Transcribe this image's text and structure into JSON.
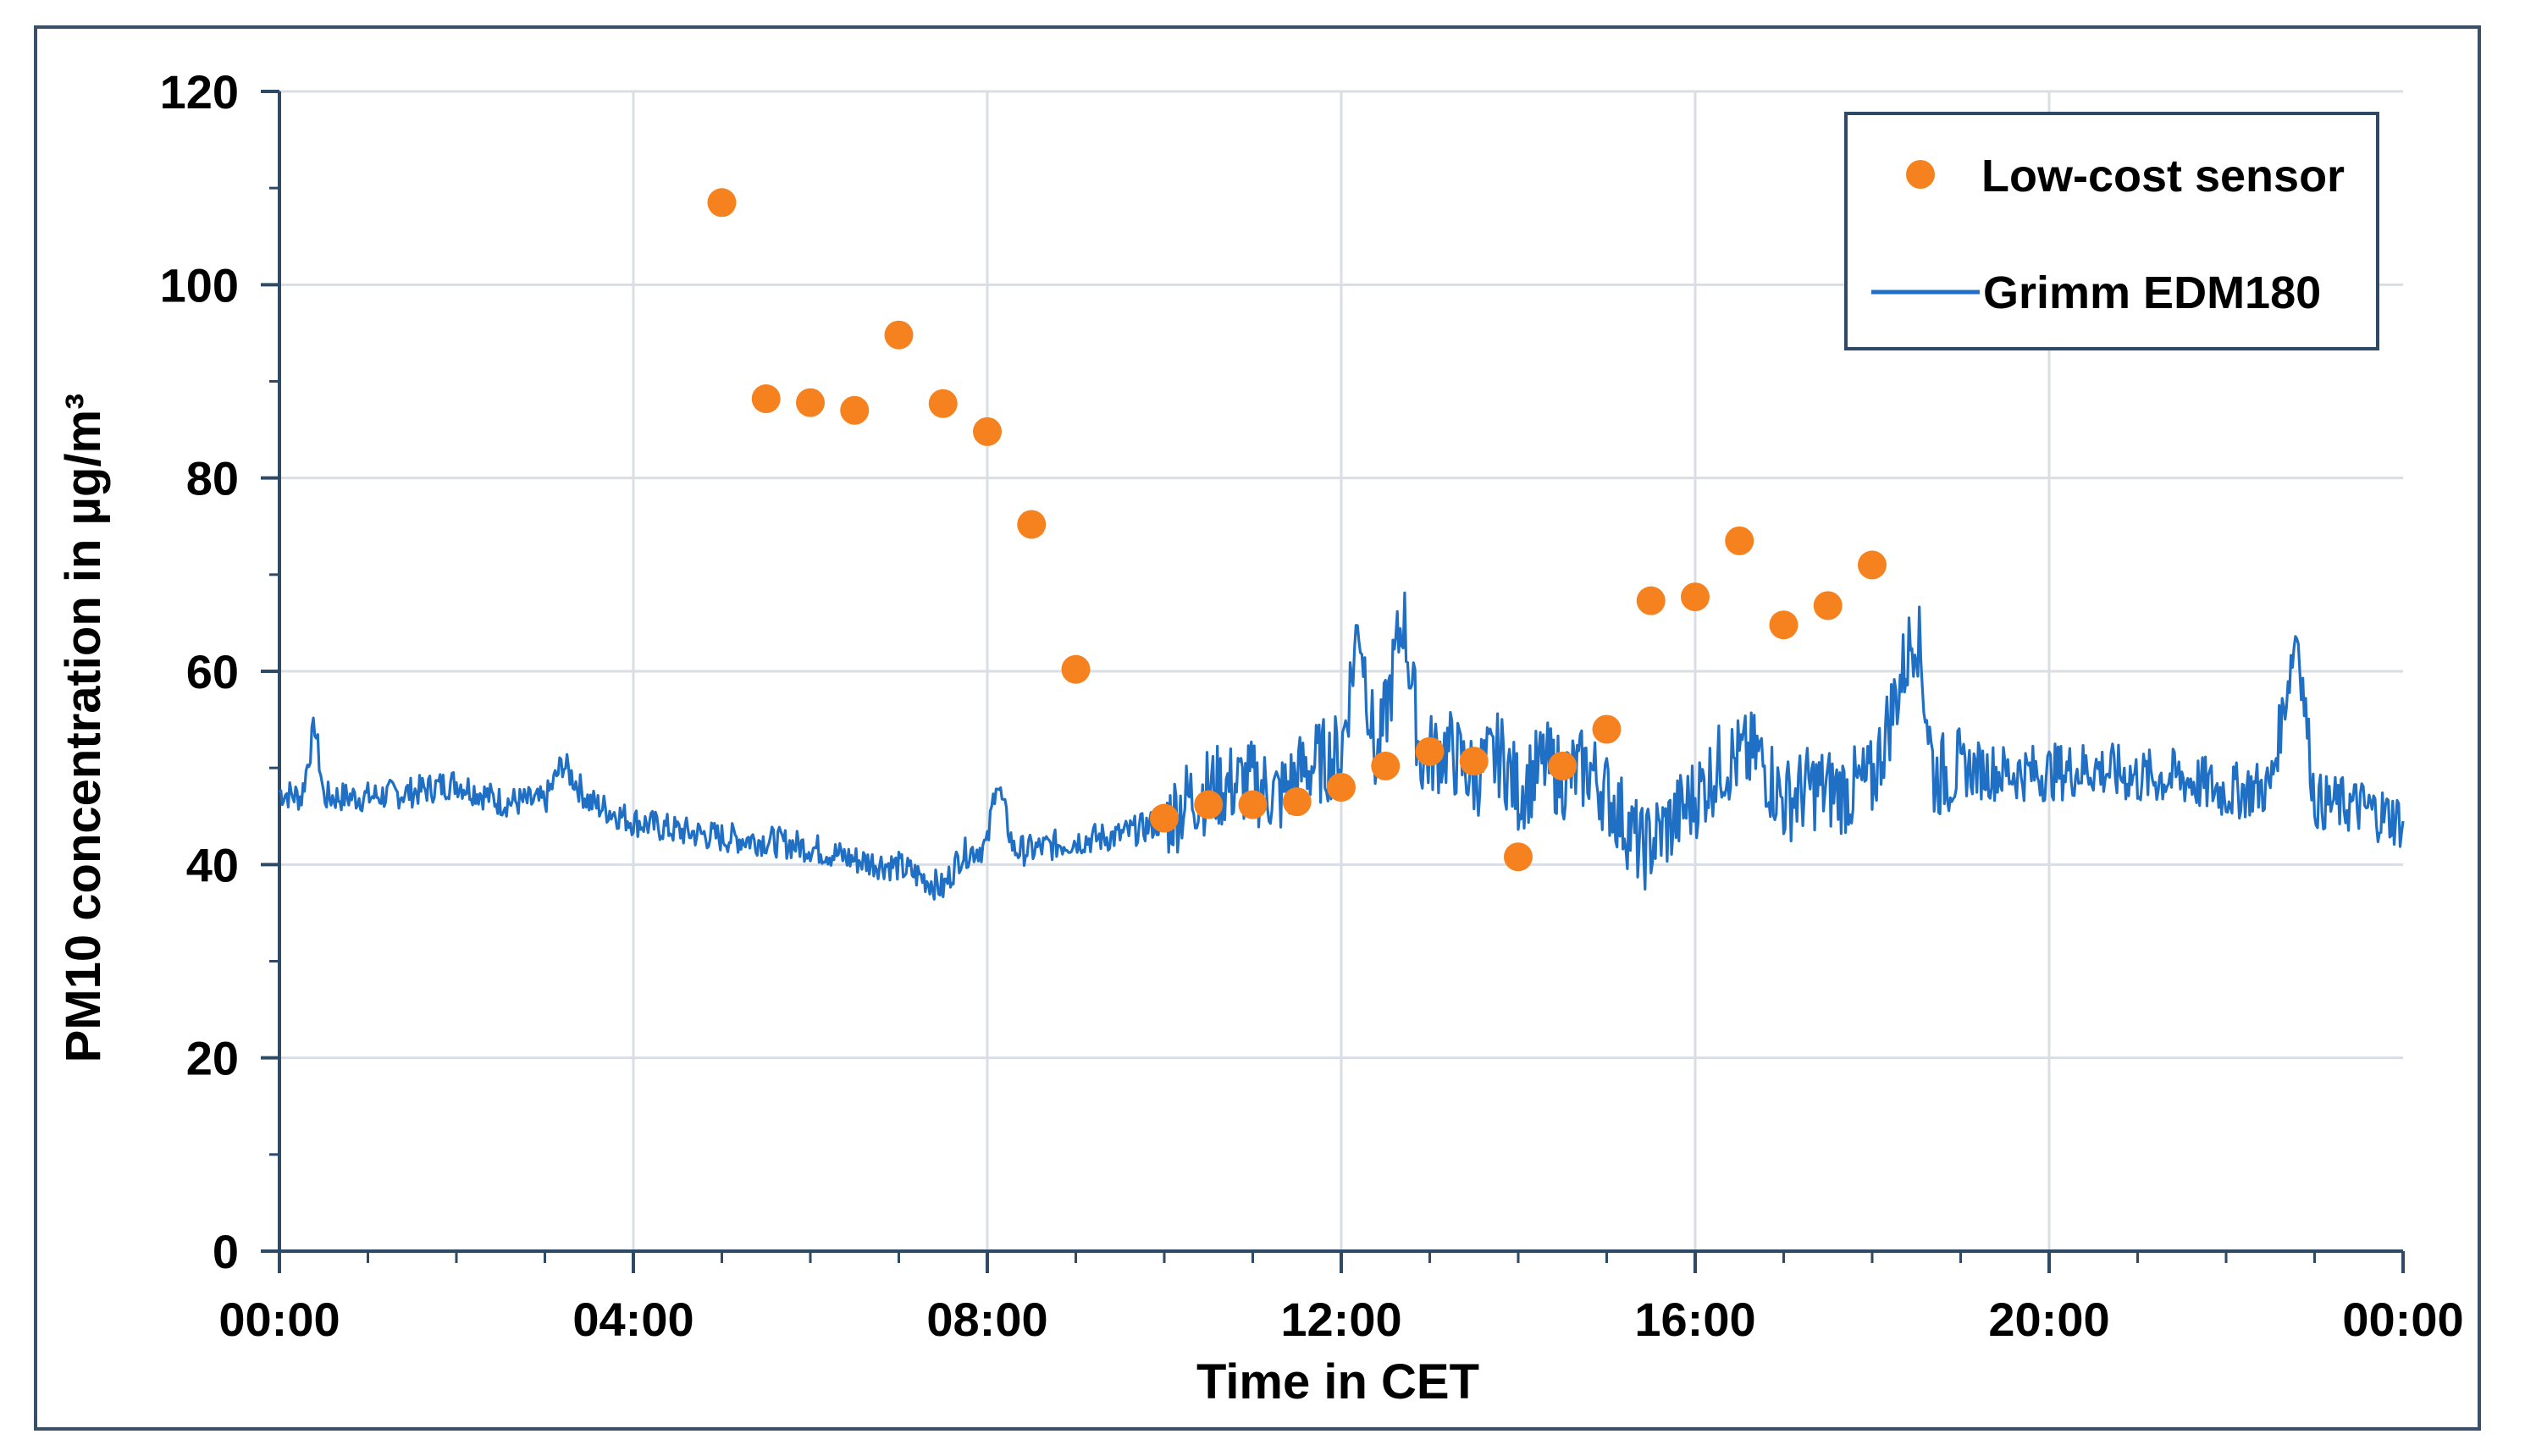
{
  "chart_data": {
    "type": "scatter+line",
    "title": "",
    "xlabel": "Time in CET",
    "ylabel": "PM10  concentration in µg/m³",
    "xlim": [
      0,
      24
    ],
    "ylim": [
      0,
      120
    ],
    "x_ticks": [
      {
        "hour": 0,
        "label": "00:00"
      },
      {
        "hour": 4,
        "label": "04:00"
      },
      {
        "hour": 8,
        "label": "08:00"
      },
      {
        "hour": 12,
        "label": "12:00"
      },
      {
        "hour": 16,
        "label": "16:00"
      },
      {
        "hour": 20,
        "label": "20:00"
      },
      {
        "hour": 24,
        "label": "00:00"
      }
    ],
    "y_ticks": [
      0,
      20,
      40,
      60,
      80,
      100,
      120
    ],
    "grid": true,
    "legend_position": "top-right",
    "series": [
      {
        "name": "Low-cost sensor",
        "kind": "scatter",
        "color": "#f5821f",
        "points": [
          {
            "x": 5.0,
            "y": 108.5
          },
          {
            "x": 5.5,
            "y": 88.2
          },
          {
            "x": 6.0,
            "y": 87.8
          },
          {
            "x": 6.5,
            "y": 87.0
          },
          {
            "x": 7.0,
            "y": 94.8
          },
          {
            "x": 7.5,
            "y": 87.7
          },
          {
            "x": 8.0,
            "y": 84.8
          },
          {
            "x": 8.5,
            "y": 75.2
          },
          {
            "x": 9.0,
            "y": 60.2
          },
          {
            "x": 10.0,
            "y": 44.8
          },
          {
            "x": 10.5,
            "y": 46.2
          },
          {
            "x": 11.0,
            "y": 46.2
          },
          {
            "x": 11.5,
            "y": 46.5
          },
          {
            "x": 12.0,
            "y": 48.0
          },
          {
            "x": 12.5,
            "y": 50.2
          },
          {
            "x": 13.0,
            "y": 51.7
          },
          {
            "x": 13.5,
            "y": 50.7
          },
          {
            "x": 14.0,
            "y": 40.8
          },
          {
            "x": 14.5,
            "y": 50.2
          },
          {
            "x": 15.0,
            "y": 54.0
          },
          {
            "x": 15.5,
            "y": 67.3
          },
          {
            "x": 16.0,
            "y": 67.7
          },
          {
            "x": 16.5,
            "y": 73.5
          },
          {
            "x": 17.0,
            "y": 64.8
          },
          {
            "x": 17.5,
            "y": 66.8
          },
          {
            "x": 18.0,
            "y": 71.0
          }
        ]
      },
      {
        "name": "Grimm EDM180",
        "kind": "line",
        "color": "#1f6fc5",
        "points": [
          {
            "x": 0.0,
            "y": 47.5
          },
          {
            "x": 0.25,
            "y": 47.0
          },
          {
            "x": 0.4,
            "y": 54.5
          },
          {
            "x": 0.5,
            "y": 47.0
          },
          {
            "x": 1.0,
            "y": 47.0
          },
          {
            "x": 1.5,
            "y": 47.5
          },
          {
            "x": 2.0,
            "y": 48.5
          },
          {
            "x": 2.5,
            "y": 46.5
          },
          {
            "x": 3.0,
            "y": 46.5
          },
          {
            "x": 3.2,
            "y": 50.5
          },
          {
            "x": 3.5,
            "y": 46.5
          },
          {
            "x": 4.0,
            "y": 44.5
          },
          {
            "x": 4.5,
            "y": 43.5
          },
          {
            "x": 5.0,
            "y": 42.8
          },
          {
            "x": 5.5,
            "y": 42.5
          },
          {
            "x": 6.0,
            "y": 41.8
          },
          {
            "x": 6.5,
            "y": 40.5
          },
          {
            "x": 7.0,
            "y": 39.8
          },
          {
            "x": 7.3,
            "y": 38.5
          },
          {
            "x": 7.5,
            "y": 37.5
          },
          {
            "x": 7.7,
            "y": 41.0
          },
          {
            "x": 8.0,
            "y": 42.0
          },
          {
            "x": 8.1,
            "y": 49.0
          },
          {
            "x": 8.3,
            "y": 41.5
          },
          {
            "x": 8.5,
            "y": 41.5
          },
          {
            "x": 9.0,
            "y": 42.5
          },
          {
            "x": 9.5,
            "y": 43.0
          },
          {
            "x": 10.0,
            "y": 44.5
          },
          {
            "x": 10.3,
            "y": 47.0
          },
          {
            "x": 10.6,
            "y": 48.0
          },
          {
            "x": 11.0,
            "y": 48.5
          },
          {
            "x": 11.3,
            "y": 47.0
          },
          {
            "x": 11.6,
            "y": 50.0
          },
          {
            "x": 12.0,
            "y": 51.5
          },
          {
            "x": 12.2,
            "y": 65.5
          },
          {
            "x": 12.4,
            "y": 50.0
          },
          {
            "x": 12.7,
            "y": 66.0
          },
          {
            "x": 12.9,
            "y": 51.0
          },
          {
            "x": 13.2,
            "y": 52.0
          },
          {
            "x": 13.5,
            "y": 49.0
          },
          {
            "x": 13.8,
            "y": 51.5
          },
          {
            "x": 14.0,
            "y": 47.5
          },
          {
            "x": 14.3,
            "y": 50.5
          },
          {
            "x": 14.5,
            "y": 49.0
          },
          {
            "x": 14.8,
            "y": 50.0
          },
          {
            "x": 15.1,
            "y": 46.0
          },
          {
            "x": 15.4,
            "y": 41.5
          },
          {
            "x": 15.7,
            "y": 44.0
          },
          {
            "x": 16.0,
            "y": 47.0
          },
          {
            "x": 16.3,
            "y": 50.5
          },
          {
            "x": 16.7,
            "y": 51.5
          },
          {
            "x": 17.0,
            "y": 46.5
          },
          {
            "x": 17.3,
            "y": 48.0
          },
          {
            "x": 17.7,
            "y": 47.5
          },
          {
            "x": 18.0,
            "y": 48.5
          },
          {
            "x": 18.5,
            "y": 65.0
          },
          {
            "x": 18.7,
            "y": 49.0
          },
          {
            "x": 19.0,
            "y": 50.0
          },
          {
            "x": 19.5,
            "y": 49.5
          },
          {
            "x": 20.0,
            "y": 49.5
          },
          {
            "x": 20.5,
            "y": 50.0
          },
          {
            "x": 21.0,
            "y": 49.0
          },
          {
            "x": 21.5,
            "y": 49.0
          },
          {
            "x": 22.0,
            "y": 47.5
          },
          {
            "x": 22.5,
            "y": 48.0
          },
          {
            "x": 22.8,
            "y": 64.5
          },
          {
            "x": 23.0,
            "y": 46.5
          },
          {
            "x": 23.5,
            "y": 46.0
          },
          {
            "x": 24.0,
            "y": 44.5
          }
        ]
      }
    ]
  }
}
